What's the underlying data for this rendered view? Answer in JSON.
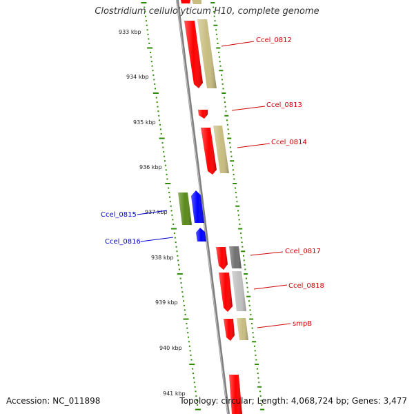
{
  "title": "Clostridium cellulolyticum H10, complete genome",
  "footer": {
    "accession": "Accession: NC_011898",
    "stats": "Topology: circular; Length: 4,068,724 bp; Genes: 3,477"
  },
  "colors": {
    "red_gene": "#ff0000",
    "blue_gene": "#0000ff",
    "green_gene": "#5a8a1a",
    "tan_feature": "#c8bd80",
    "dark_gray": "#707070",
    "light_gray": "#c0c0c0",
    "tick_green": "#2a8a00",
    "label_red": "#cc0000",
    "label_blue": "#0000cc",
    "backbone": "#909090"
  },
  "kbp_ticks": [
    "933 kbp",
    "934 kbp",
    "935 kbp",
    "936 kbp",
    "937 kbp",
    "938 kbp",
    "939 kbp",
    "940 kbp",
    "941 kbp"
  ],
  "gene_labels": [
    "Ccel_0812",
    "Ccel_0813",
    "Ccel_0814",
    "Ccel_0815",
    "Ccel_0816",
    "Ccel_0817",
    "Ccel_0818",
    "smpB"
  ]
}
